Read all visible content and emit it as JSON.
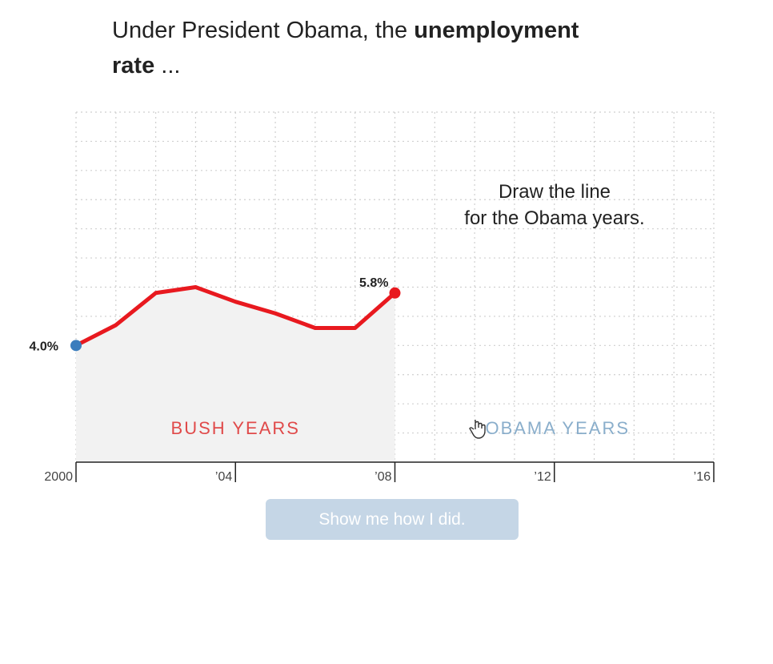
{
  "heading": {
    "part1": "Under President Obama, the ",
    "bold": "unemployment rate",
    "part2": " ..."
  },
  "instruction": {
    "line1": "Draw the line",
    "line2": "for the Obama years."
  },
  "button": {
    "label": "Show me how I did."
  },
  "colors": {
    "line": "#e8191f",
    "start_dot": "#3b7dbd",
    "bush_label": "#e04a4a",
    "obama_label": "#8aaecb",
    "bush_shade": "#f2f2f2",
    "button_bg": "#c5d6e6"
  },
  "chart_data": {
    "type": "line",
    "x": [
      2000,
      2001,
      2002,
      2003,
      2004,
      2005,
      2006,
      2007,
      2008
    ],
    "y": [
      4.0,
      4.7,
      5.8,
      6.0,
      5.5,
      5.1,
      4.6,
      4.6,
      5.8
    ],
    "xlim": [
      2000,
      2016
    ],
    "ylim": [
      0,
      12
    ],
    "x_ticks": [
      {
        "value": 2000,
        "label": "2000"
      },
      {
        "value": 2004,
        "label": "’04"
      },
      {
        "value": 2008,
        "label": "’08"
      },
      {
        "value": 2012,
        "label": "’12"
      },
      {
        "value": 2016,
        "label": "’16"
      }
    ],
    "data_labels": {
      "start": "4.0%",
      "end": "5.8%"
    },
    "regions": [
      {
        "name": "BUSH YEARS",
        "from": 2000,
        "to": 2008
      },
      {
        "name": "OBAMA YEARS",
        "from": 2008,
        "to": 2016
      }
    ],
    "grid": true
  }
}
